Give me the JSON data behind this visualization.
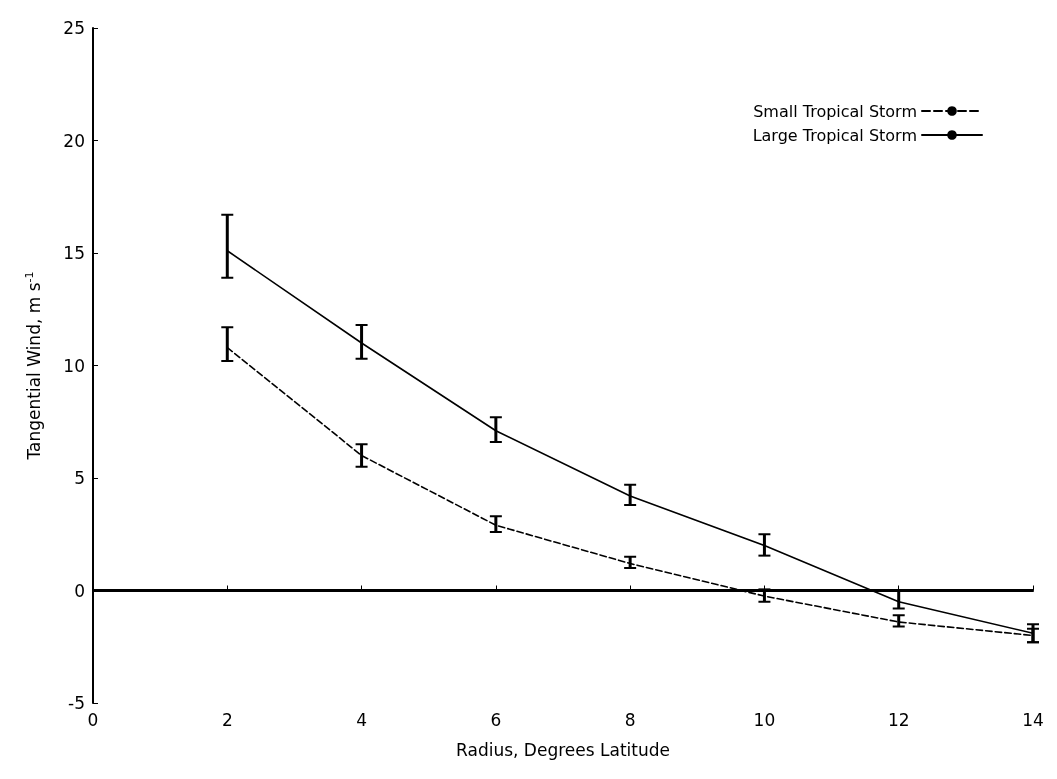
{
  "chart_data": {
    "type": "line",
    "xlabel": "Radius, Degrees Latitude",
    "ylabel": "Tangential Wind, m s$^{-1}$",
    "xlim": [
      0,
      14
    ],
    "xticks": [
      0,
      2,
      4,
      6,
      8,
      10,
      12,
      14
    ],
    "ylim": [
      -5,
      25
    ],
    "yticks": [
      -5,
      0,
      5,
      10,
      15,
      20,
      25
    ],
    "x": [
      2,
      4,
      6,
      8,
      10,
      12,
      14
    ],
    "series": [
      {
        "name": "Small Tropical Storm",
        "color": "#000000",
        "line_style": "dashed",
        "values": [
          10.8,
          6.0,
          2.9,
          1.2,
          -0.25,
          -1.4,
          -2.0
        ],
        "errors": [
          [
            10.2,
            11.7
          ],
          [
            5.5,
            6.5
          ],
          [
            2.6,
            3.3
          ],
          [
            1.0,
            1.5
          ],
          [
            -0.5,
            0.05
          ],
          [
            -1.6,
            -1.1
          ],
          [
            -2.3,
            -1.7
          ]
        ]
      },
      {
        "name": "Large Tropical Storm",
        "color": "#000000",
        "line_style": "solid",
        "values": [
          15.1,
          11.0,
          7.1,
          4.2,
          2.0,
          -0.5,
          -1.9
        ],
        "errors": [
          [
            13.9,
            16.7
          ],
          [
            10.3,
            11.8
          ],
          [
            6.6,
            7.7
          ],
          [
            3.8,
            4.7
          ],
          [
            1.55,
            2.5
          ],
          [
            -0.8,
            0.0
          ],
          [
            -2.3,
            -1.5
          ]
        ]
      }
    ],
    "ref_lines": [
      {
        "axis": "y",
        "value": 0,
        "color": "#000000"
      }
    ],
    "legend": "top right",
    "grid": false,
    "marker": "none"
  }
}
